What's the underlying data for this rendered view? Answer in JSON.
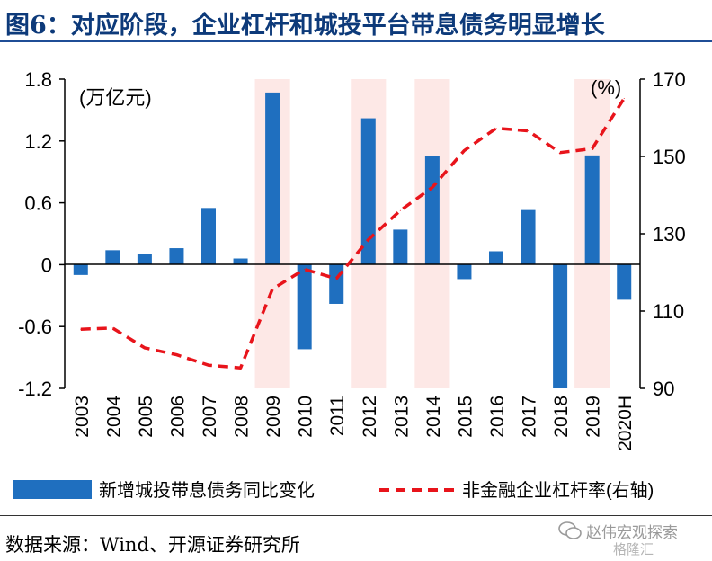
{
  "title": "图6：对应阶段，企业杠杆和城投平台带息债务明显增长",
  "source": "数据来源：Wind、开源证券研究所",
  "watermark": {
    "name": "赵伟宏观探索",
    "sub": "格隆汇"
  },
  "chart_data": {
    "type": "bar+line",
    "categories": [
      "2003",
      "2004",
      "2005",
      "2006",
      "2007",
      "2008",
      "2009",
      "2010",
      "2011",
      "2012",
      "2013",
      "2014",
      "2015",
      "2016",
      "2017",
      "2018",
      "2019",
      "2020H"
    ],
    "left_unit": "(万亿元)",
    "right_unit": "(%)",
    "left_axis": {
      "min": -1.2,
      "max": 1.8,
      "ticks": [
        1.8,
        1.2,
        0.6,
        0,
        -0.6,
        -1.2
      ],
      "tick_labels": [
        "1.8",
        "1.2",
        "0.6",
        "0",
        "-0.6",
        "-1.2"
      ]
    },
    "right_axis": {
      "min": 90,
      "max": 170,
      "ticks": [
        170,
        150,
        130,
        110,
        90
      ],
      "tick_labels": [
        "170",
        "150",
        "130",
        "110",
        "90"
      ]
    },
    "highlight_periods": [
      "2009",
      "2012",
      "2014",
      "2019"
    ],
    "series": [
      {
        "name": "新增城投带息债务同比变化",
        "type": "bar",
        "axis": "left",
        "color": "#1f6fbf",
        "values": [
          -0.1,
          0.14,
          0.1,
          0.16,
          0.55,
          0.06,
          1.67,
          -0.82,
          -0.38,
          1.42,
          0.34,
          1.05,
          -0.14,
          0.13,
          0.53,
          -1.2,
          1.06,
          -0.34
        ]
      },
      {
        "name": "非金融企业杠杆率(右轴)",
        "type": "line",
        "axis": "right",
        "color": "#e8141b",
        "values": [
          105.3,
          105.6,
          100.5,
          98.7,
          96.0,
          95.3,
          115.7,
          120.8,
          118.4,
          128.5,
          136.0,
          142.0,
          151.5,
          157.3,
          156.6,
          151.0,
          152.0,
          165.0
        ]
      }
    ]
  }
}
